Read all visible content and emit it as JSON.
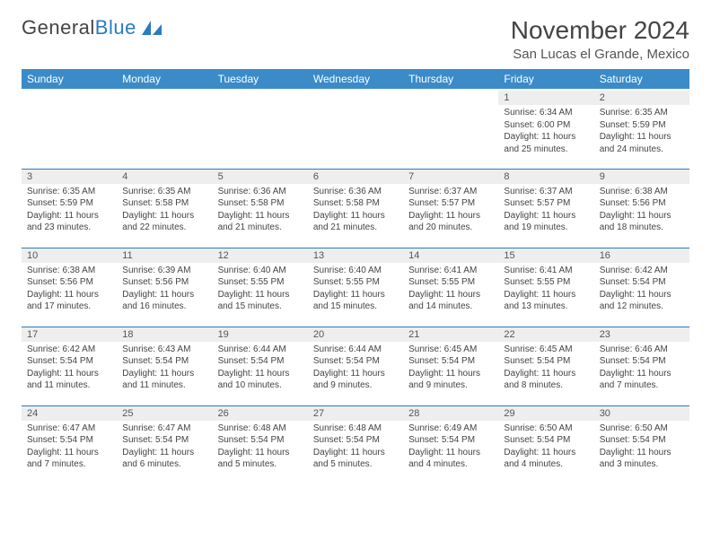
{
  "logo": {
    "text_dark": "General",
    "text_blue": "Blue"
  },
  "title": "November 2024",
  "location": "San Lucas el Grande, Mexico",
  "colors": {
    "header_bg": "#3b8bc9",
    "header_text": "#ffffff",
    "row_border": "#2a7bbf",
    "daynum_bg": "#eeeeee",
    "body_text": "#444444"
  },
  "weekdays": [
    "Sunday",
    "Monday",
    "Tuesday",
    "Wednesday",
    "Thursday",
    "Friday",
    "Saturday"
  ],
  "weeks": [
    [
      {
        "empty": true
      },
      {
        "empty": true
      },
      {
        "empty": true
      },
      {
        "empty": true
      },
      {
        "empty": true
      },
      {
        "num": "1",
        "sunrise": "6:34 AM",
        "sunset": "6:00 PM",
        "daylight": "11 hours and 25 minutes."
      },
      {
        "num": "2",
        "sunrise": "6:35 AM",
        "sunset": "5:59 PM",
        "daylight": "11 hours and 24 minutes."
      }
    ],
    [
      {
        "num": "3",
        "sunrise": "6:35 AM",
        "sunset": "5:59 PM",
        "daylight": "11 hours and 23 minutes."
      },
      {
        "num": "4",
        "sunrise": "6:35 AM",
        "sunset": "5:58 PM",
        "daylight": "11 hours and 22 minutes."
      },
      {
        "num": "5",
        "sunrise": "6:36 AM",
        "sunset": "5:58 PM",
        "daylight": "11 hours and 21 minutes."
      },
      {
        "num": "6",
        "sunrise": "6:36 AM",
        "sunset": "5:58 PM",
        "daylight": "11 hours and 21 minutes."
      },
      {
        "num": "7",
        "sunrise": "6:37 AM",
        "sunset": "5:57 PM",
        "daylight": "11 hours and 20 minutes."
      },
      {
        "num": "8",
        "sunrise": "6:37 AM",
        "sunset": "5:57 PM",
        "daylight": "11 hours and 19 minutes."
      },
      {
        "num": "9",
        "sunrise": "6:38 AM",
        "sunset": "5:56 PM",
        "daylight": "11 hours and 18 minutes."
      }
    ],
    [
      {
        "num": "10",
        "sunrise": "6:38 AM",
        "sunset": "5:56 PM",
        "daylight": "11 hours and 17 minutes."
      },
      {
        "num": "11",
        "sunrise": "6:39 AM",
        "sunset": "5:56 PM",
        "daylight": "11 hours and 16 minutes."
      },
      {
        "num": "12",
        "sunrise": "6:40 AM",
        "sunset": "5:55 PM",
        "daylight": "11 hours and 15 minutes."
      },
      {
        "num": "13",
        "sunrise": "6:40 AM",
        "sunset": "5:55 PM",
        "daylight": "11 hours and 15 minutes."
      },
      {
        "num": "14",
        "sunrise": "6:41 AM",
        "sunset": "5:55 PM",
        "daylight": "11 hours and 14 minutes."
      },
      {
        "num": "15",
        "sunrise": "6:41 AM",
        "sunset": "5:55 PM",
        "daylight": "11 hours and 13 minutes."
      },
      {
        "num": "16",
        "sunrise": "6:42 AM",
        "sunset": "5:54 PM",
        "daylight": "11 hours and 12 minutes."
      }
    ],
    [
      {
        "num": "17",
        "sunrise": "6:42 AM",
        "sunset": "5:54 PM",
        "daylight": "11 hours and 11 minutes."
      },
      {
        "num": "18",
        "sunrise": "6:43 AM",
        "sunset": "5:54 PM",
        "daylight": "11 hours and 11 minutes."
      },
      {
        "num": "19",
        "sunrise": "6:44 AM",
        "sunset": "5:54 PM",
        "daylight": "11 hours and 10 minutes."
      },
      {
        "num": "20",
        "sunrise": "6:44 AM",
        "sunset": "5:54 PM",
        "daylight": "11 hours and 9 minutes."
      },
      {
        "num": "21",
        "sunrise": "6:45 AM",
        "sunset": "5:54 PM",
        "daylight": "11 hours and 9 minutes."
      },
      {
        "num": "22",
        "sunrise": "6:45 AM",
        "sunset": "5:54 PM",
        "daylight": "11 hours and 8 minutes."
      },
      {
        "num": "23",
        "sunrise": "6:46 AM",
        "sunset": "5:54 PM",
        "daylight": "11 hours and 7 minutes."
      }
    ],
    [
      {
        "num": "24",
        "sunrise": "6:47 AM",
        "sunset": "5:54 PM",
        "daylight": "11 hours and 7 minutes."
      },
      {
        "num": "25",
        "sunrise": "6:47 AM",
        "sunset": "5:54 PM",
        "daylight": "11 hours and 6 minutes."
      },
      {
        "num": "26",
        "sunrise": "6:48 AM",
        "sunset": "5:54 PM",
        "daylight": "11 hours and 5 minutes."
      },
      {
        "num": "27",
        "sunrise": "6:48 AM",
        "sunset": "5:54 PM",
        "daylight": "11 hours and 5 minutes."
      },
      {
        "num": "28",
        "sunrise": "6:49 AM",
        "sunset": "5:54 PM",
        "daylight": "11 hours and 4 minutes."
      },
      {
        "num": "29",
        "sunrise": "6:50 AM",
        "sunset": "5:54 PM",
        "daylight": "11 hours and 4 minutes."
      },
      {
        "num": "30",
        "sunrise": "6:50 AM",
        "sunset": "5:54 PM",
        "daylight": "11 hours and 3 minutes."
      }
    ]
  ],
  "labels": {
    "sunrise": "Sunrise:",
    "sunset": "Sunset:",
    "daylight": "Daylight:"
  }
}
